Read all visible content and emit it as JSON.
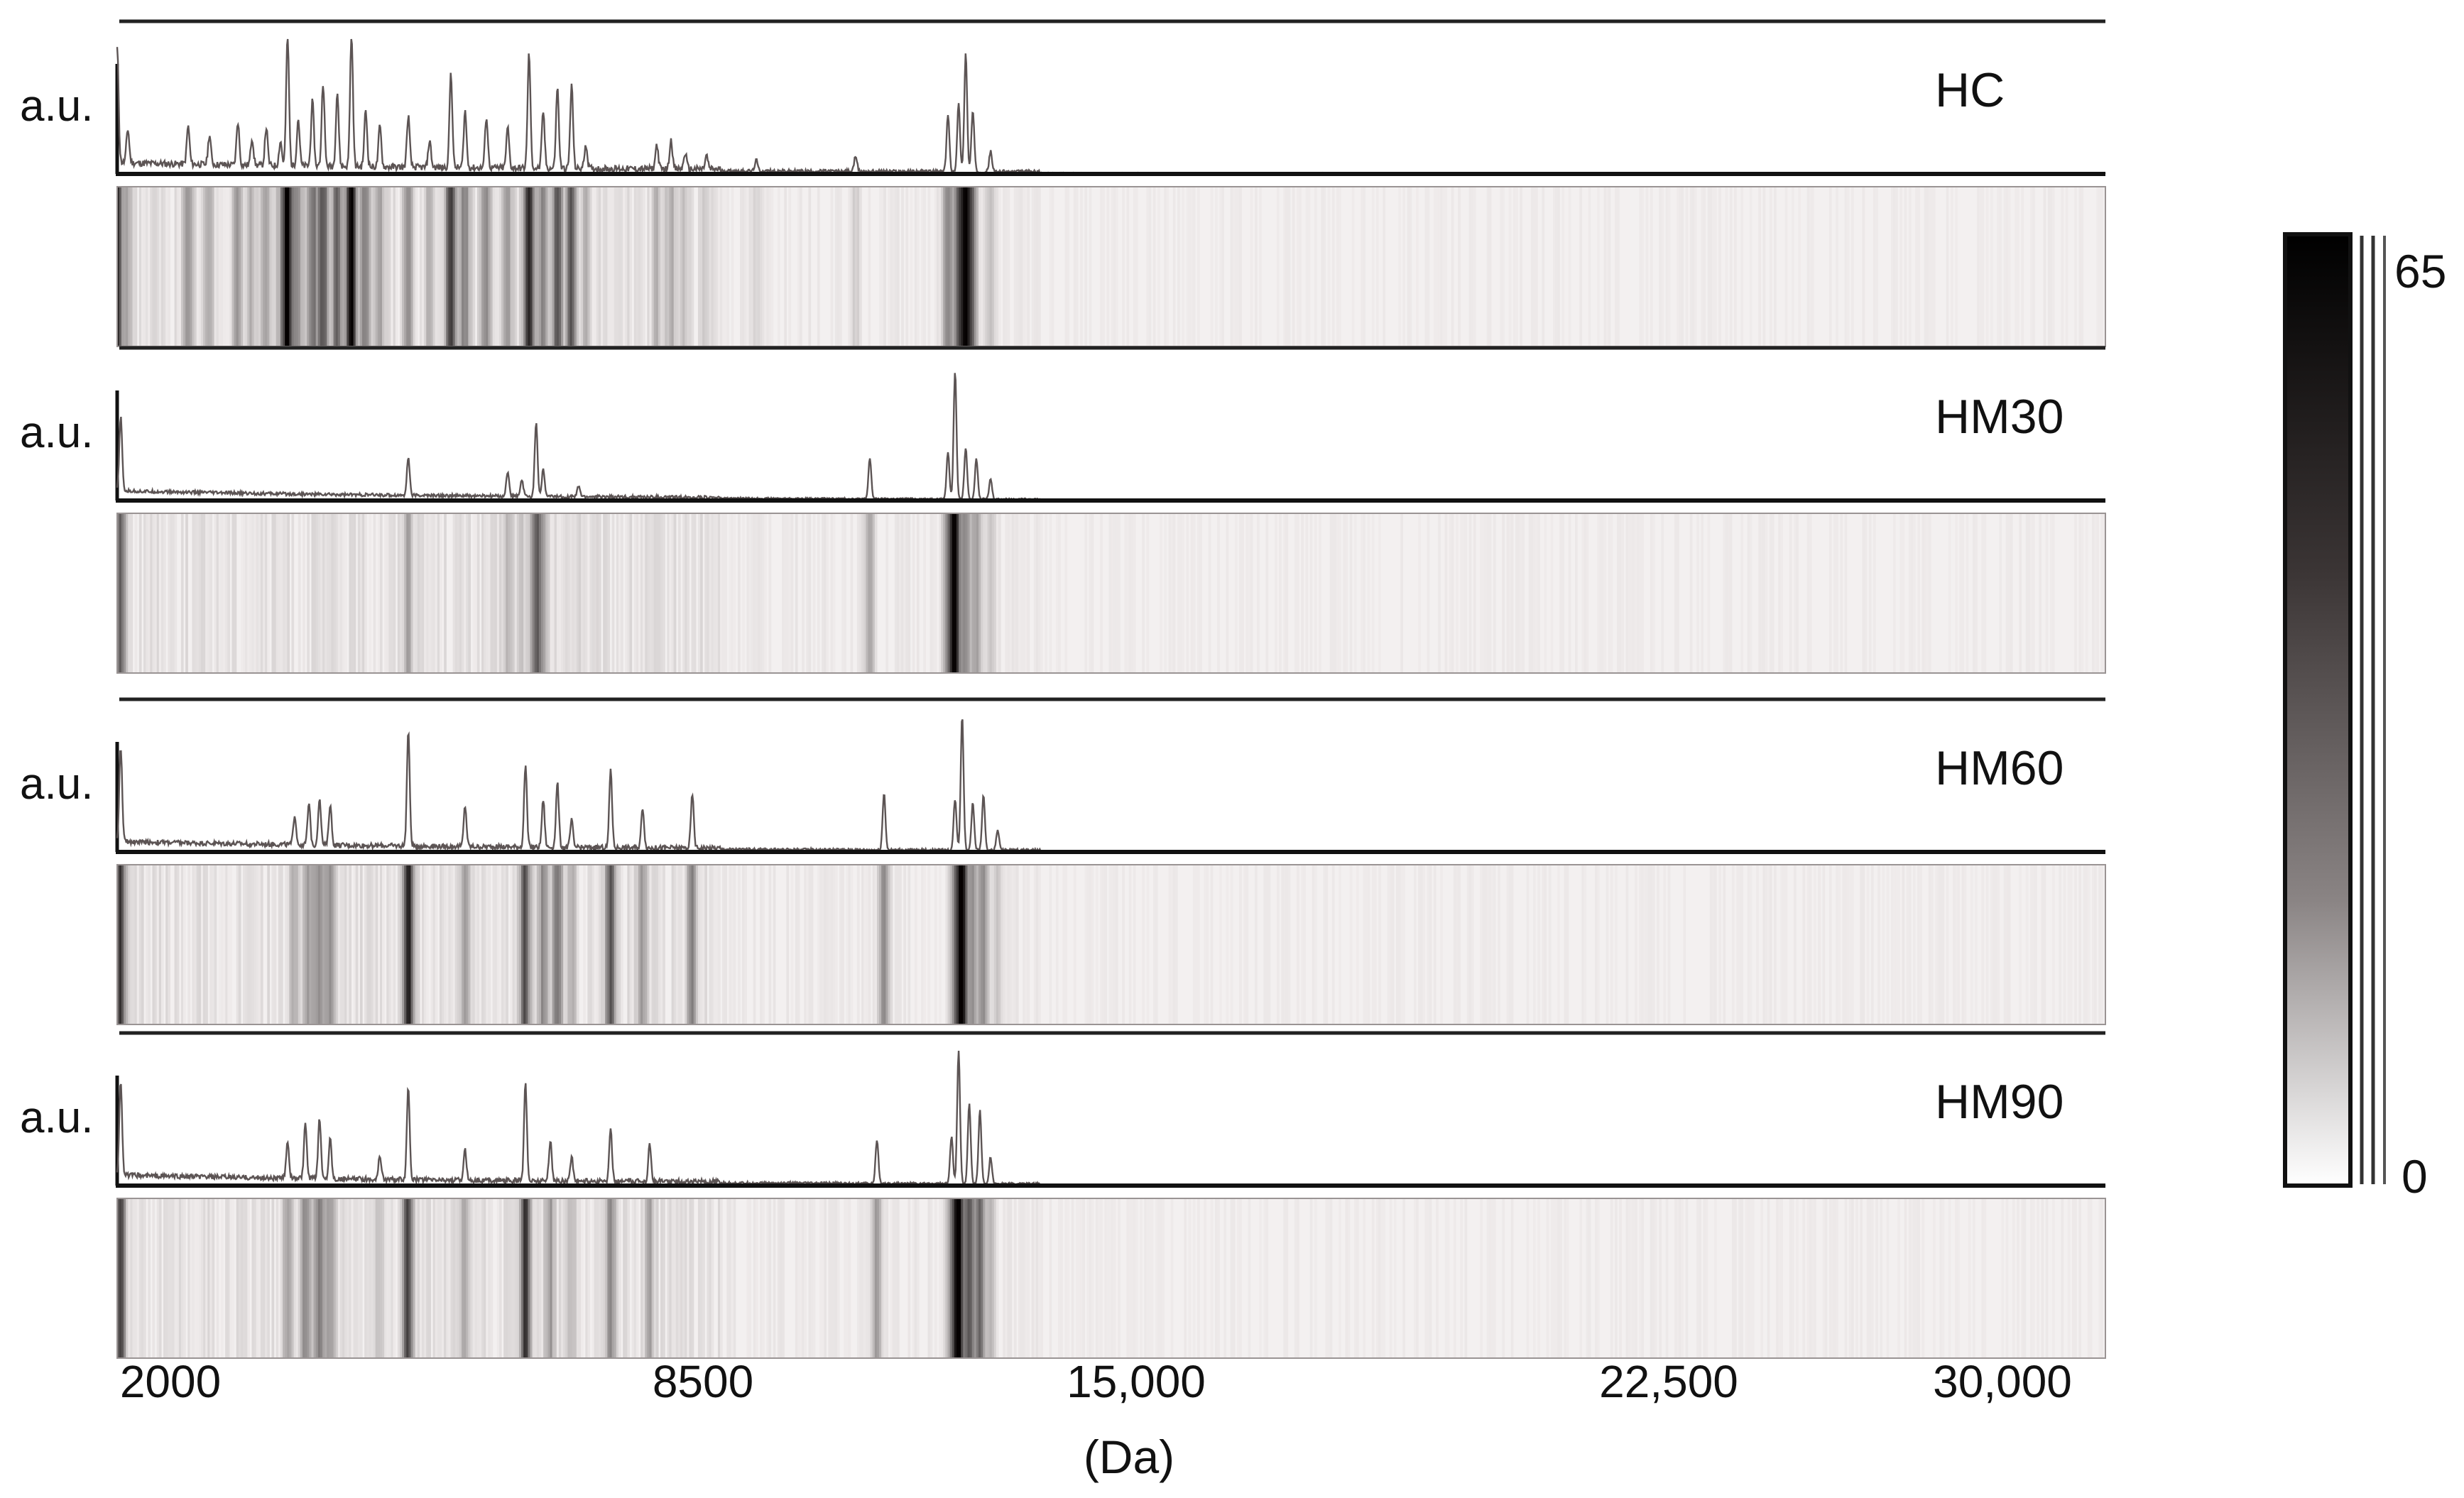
{
  "chart_data": {
    "type": "line",
    "title": "",
    "ylabel": "a.u.",
    "xlabel": "(Da)",
    "x_tick_labels": [
      "2000",
      "8500",
      "15,000",
      "22,500",
      "30,000"
    ],
    "x_ticks": [
      2000,
      8500,
      15000,
      22500,
      30000
    ],
    "xlim": [
      2000,
      30000
    ],
    "ylim": [
      0,
      1
    ],
    "heatmap_below_each_spectrum": true,
    "colorbar": {
      "min_label": "0",
      "max_label": "65",
      "min": 0,
      "max": 65,
      "colormap": "white-to-black"
    },
    "panels": [
      {
        "name": "HC",
        "peaks": [
          [
            2000,
            0.85
          ],
          [
            2150,
            0.25
          ],
          [
            3000,
            0.28
          ],
          [
            3300,
            0.22
          ],
          [
            3700,
            0.32
          ],
          [
            3900,
            0.2
          ],
          [
            4100,
            0.28
          ],
          [
            4300,
            0.18
          ],
          [
            4400,
            0.97
          ],
          [
            4550,
            0.35
          ],
          [
            4750,
            0.48
          ],
          [
            4900,
            0.62
          ],
          [
            5100,
            0.55
          ],
          [
            5300,
            1.0
          ],
          [
            5500,
            0.42
          ],
          [
            5700,
            0.3
          ],
          [
            6100,
            0.38
          ],
          [
            6400,
            0.2
          ],
          [
            6700,
            0.7
          ],
          [
            6900,
            0.42
          ],
          [
            7200,
            0.38
          ],
          [
            7500,
            0.3
          ],
          [
            7800,
            0.85
          ],
          [
            8000,
            0.42
          ],
          [
            8200,
            0.6
          ],
          [
            8400,
            0.62
          ],
          [
            8600,
            0.18
          ],
          [
            9600,
            0.18
          ],
          [
            9800,
            0.22
          ],
          [
            10000,
            0.12
          ],
          [
            10300,
            0.1
          ],
          [
            11000,
            0.08
          ],
          [
            12400,
            0.12
          ],
          [
            13700,
            0.42
          ],
          [
            13850,
            0.5
          ],
          [
            13950,
            0.88
          ],
          [
            14050,
            0.45
          ],
          [
            14300,
            0.15
          ]
        ],
        "noise": 0.04
      },
      {
        "name": "HM30",
        "peaks": [
          [
            2050,
            0.55
          ],
          [
            6100,
            0.28
          ],
          [
            7500,
            0.18
          ],
          [
            7700,
            0.12
          ],
          [
            7900,
            0.55
          ],
          [
            8000,
            0.2
          ],
          [
            8500,
            0.08
          ],
          [
            12600,
            0.3
          ],
          [
            13700,
            0.35
          ],
          [
            13800,
            0.95
          ],
          [
            13950,
            0.38
          ],
          [
            14100,
            0.3
          ],
          [
            14300,
            0.15
          ]
        ],
        "noise": 0.02
      },
      {
        "name": "HM60",
        "peaks": [
          [
            2050,
            0.7
          ],
          [
            4500,
            0.22
          ],
          [
            4700,
            0.3
          ],
          [
            4850,
            0.35
          ],
          [
            5000,
            0.3
          ],
          [
            6100,
            0.85
          ],
          [
            6900,
            0.3
          ],
          [
            7750,
            0.6
          ],
          [
            8000,
            0.35
          ],
          [
            8200,
            0.48
          ],
          [
            8400,
            0.2
          ],
          [
            8950,
            0.58
          ],
          [
            9400,
            0.3
          ],
          [
            10100,
            0.4
          ],
          [
            12800,
            0.42
          ],
          [
            13800,
            0.38
          ],
          [
            13900,
            1.0
          ],
          [
            14050,
            0.35
          ],
          [
            14200,
            0.4
          ],
          [
            14400,
            0.15
          ]
        ],
        "noise": 0.03
      },
      {
        "name": "HM90",
        "peaks": [
          [
            2050,
            0.7
          ],
          [
            4400,
            0.28
          ],
          [
            4650,
            0.4
          ],
          [
            4850,
            0.45
          ],
          [
            5000,
            0.3
          ],
          [
            5700,
            0.18
          ],
          [
            6100,
            0.68
          ],
          [
            6900,
            0.22
          ],
          [
            7750,
            0.72
          ],
          [
            8100,
            0.3
          ],
          [
            8400,
            0.18
          ],
          [
            8950,
            0.38
          ],
          [
            9500,
            0.28
          ],
          [
            12700,
            0.32
          ],
          [
            13750,
            0.35
          ],
          [
            13850,
            1.0
          ],
          [
            14000,
            0.6
          ],
          [
            14150,
            0.55
          ],
          [
            14300,
            0.2
          ]
        ],
        "noise": 0.03
      }
    ]
  }
}
